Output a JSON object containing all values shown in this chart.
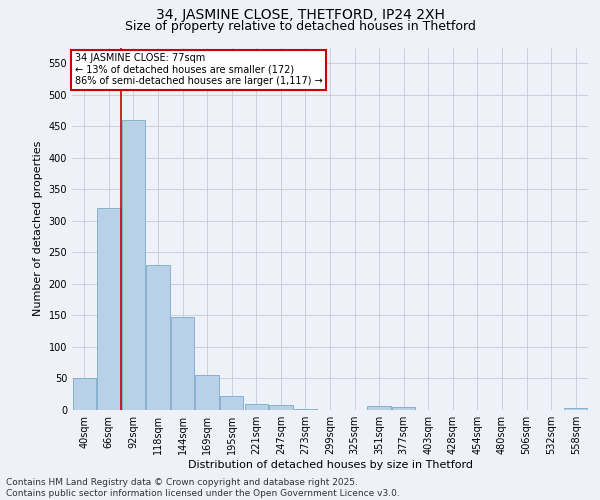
{
  "title": "34, JASMINE CLOSE, THETFORD, IP24 2XH",
  "subtitle": "Size of property relative to detached houses in Thetford",
  "xlabel": "Distribution of detached houses by size in Thetford",
  "ylabel": "Number of detached properties",
  "categories": [
    "40sqm",
    "66sqm",
    "92sqm",
    "118sqm",
    "144sqm",
    "169sqm",
    "195sqm",
    "221sqm",
    "247sqm",
    "273sqm",
    "299sqm",
    "325sqm",
    "351sqm",
    "377sqm",
    "403sqm",
    "428sqm",
    "454sqm",
    "480sqm",
    "506sqm",
    "532sqm",
    "558sqm"
  ],
  "values": [
    50,
    320,
    460,
    230,
    148,
    55,
    22,
    10,
    8,
    1,
    0,
    0,
    6,
    5,
    0,
    0,
    0,
    0,
    0,
    0,
    3
  ],
  "bar_color": "#b8d0e8",
  "bar_edgecolor": "#7aaac8",
  "marker_label": "34 JASMINE CLOSE: 77sqm",
  "annotation_line1": "← 13% of detached houses are smaller (172)",
  "annotation_line2": "86% of semi-detached houses are larger (1,117) →",
  "annotation_box_color": "#ffffff",
  "annotation_box_edgecolor": "#cc0000",
  "vline_color": "#cc0000",
  "vline_x": 1.5,
  "ylim": [
    0,
    575
  ],
  "yticks": [
    0,
    50,
    100,
    150,
    200,
    250,
    300,
    350,
    400,
    450,
    500,
    550
  ],
  "background_color": "#eef2f8",
  "grid_color": "#c8c8d8",
  "footer_line1": "Contains HM Land Registry data © Crown copyright and database right 2025.",
  "footer_line2": "Contains public sector information licensed under the Open Government Licence v3.0.",
  "title_fontsize": 10,
  "subtitle_fontsize": 9,
  "xlabel_fontsize": 8,
  "ylabel_fontsize": 8,
  "annot_fontsize": 7,
  "tick_fontsize": 7,
  "footer_fontsize": 6.5
}
